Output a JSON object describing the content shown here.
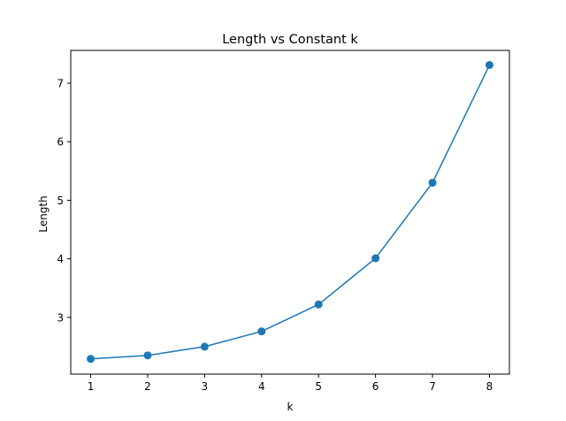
{
  "chart_data": {
    "type": "line",
    "title": "Length vs Constant k",
    "xlabel": "k",
    "ylabel": "Length",
    "x": [
      1,
      2,
      3,
      4,
      5,
      6,
      7,
      8
    ],
    "series": [
      {
        "values": [
          2.29,
          2.35,
          2.5,
          2.76,
          3.22,
          4.01,
          5.3,
          7.31
        ]
      }
    ],
    "xlim": [
      0.65,
      8.35
    ],
    "ylim": [
      2.03,
      7.56
    ],
    "xticks": [
      1,
      2,
      3,
      4,
      5,
      6,
      7,
      8
    ],
    "yticks": [
      3,
      4,
      5,
      6,
      7
    ],
    "grid": false,
    "legend": "none",
    "color": "#1f77b4"
  }
}
